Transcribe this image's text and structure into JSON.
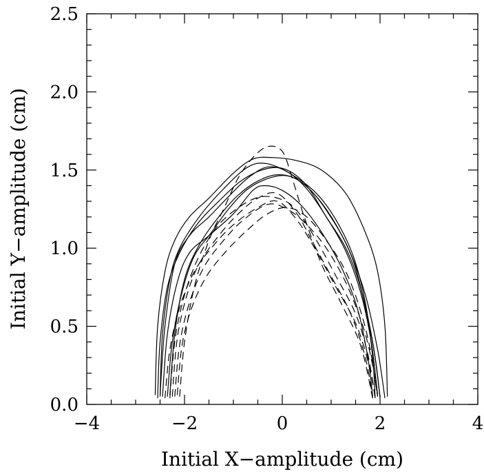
{
  "chart_data": {
    "type": "line",
    "title": "",
    "xlabel": "Initial X−amplitude (cm)",
    "ylabel": "Initial Y−amplitude (cm)",
    "xlim": [
      -4,
      4
    ],
    "ylim": [
      0,
      2.5
    ],
    "x_ticks": [
      -4,
      -2,
      0,
      2,
      4
    ],
    "x_tick_labels": [
      "−4",
      "−2",
      "0",
      "2",
      "4"
    ],
    "y_ticks": [
      0,
      0.5,
      1.0,
      1.5,
      2.0,
      2.5
    ],
    "y_tick_labels": [
      "0.0",
      "0.5",
      "1.0",
      "1.5",
      "2.0",
      "2.5"
    ],
    "grid": false,
    "legend": "none",
    "series": [
      {
        "style": "solid",
        "points": [
          [
            -2.6,
            0.06
          ],
          [
            -2.55,
            0.5
          ],
          [
            -2.4,
            0.85
          ],
          [
            -2.2,
            1.05
          ],
          [
            -1.9,
            1.2
          ],
          [
            -1.5,
            1.32
          ],
          [
            -1.0,
            1.48
          ],
          [
            -0.6,
            1.57
          ],
          [
            -0.2,
            1.58
          ],
          [
            0.3,
            1.56
          ],
          [
            0.8,
            1.5
          ],
          [
            1.3,
            1.35
          ],
          [
            1.7,
            1.1
          ],
          [
            1.95,
            0.85
          ],
          [
            2.1,
            0.5
          ],
          [
            2.15,
            0.05
          ]
        ]
      },
      {
        "style": "solid",
        "points": [
          [
            -2.5,
            0.05
          ],
          [
            -2.45,
            0.45
          ],
          [
            -2.3,
            0.8
          ],
          [
            -2.1,
            1.0
          ],
          [
            -1.7,
            1.2
          ],
          [
            -1.2,
            1.38
          ],
          [
            -0.7,
            1.52
          ],
          [
            -0.3,
            1.54
          ],
          [
            0.2,
            1.47
          ],
          [
            0.7,
            1.35
          ],
          [
            1.1,
            1.18
          ],
          [
            1.45,
            0.95
          ],
          [
            1.7,
            0.65
          ],
          [
            1.85,
            0.3
          ],
          [
            1.9,
            0.04
          ]
        ]
      },
      {
        "style": "solid",
        "points": [
          [
            -2.55,
            0.04
          ],
          [
            -2.5,
            0.4
          ],
          [
            -2.35,
            0.75
          ],
          [
            -2.1,
            0.97
          ],
          [
            -1.75,
            1.15
          ],
          [
            -1.3,
            1.3
          ],
          [
            -0.8,
            1.44
          ],
          [
            -0.3,
            1.51
          ],
          [
            0.1,
            1.5
          ],
          [
            0.5,
            1.4
          ],
          [
            0.9,
            1.2
          ],
          [
            1.3,
            1.0
          ],
          [
            1.6,
            0.75
          ],
          [
            1.85,
            0.4
          ],
          [
            2.0,
            0.05
          ]
        ]
      },
      {
        "style": "solid",
        "points": [
          [
            -2.45,
            0.05
          ],
          [
            -2.35,
            0.45
          ],
          [
            -2.15,
            0.78
          ],
          [
            -1.9,
            0.97
          ],
          [
            -1.5,
            1.08
          ],
          [
            -1.0,
            1.22
          ],
          [
            -0.6,
            1.37
          ],
          [
            -0.35,
            1.4
          ],
          [
            0.0,
            1.37
          ],
          [
            0.4,
            1.27
          ],
          [
            0.85,
            1.08
          ],
          [
            1.25,
            0.85
          ],
          [
            1.55,
            0.6
          ],
          [
            1.75,
            0.3
          ],
          [
            1.85,
            0.05
          ]
        ]
      },
      {
        "style": "solid",
        "points": [
          [
            -2.3,
            0.06
          ],
          [
            -2.2,
            0.45
          ],
          [
            -2.0,
            0.8
          ],
          [
            -1.7,
            1.02
          ],
          [
            -1.3,
            1.2
          ],
          [
            -0.9,
            1.34
          ],
          [
            -0.5,
            1.43
          ],
          [
            -0.1,
            1.47
          ],
          [
            0.3,
            1.44
          ],
          [
            0.7,
            1.33
          ],
          [
            1.1,
            1.15
          ],
          [
            1.45,
            0.92
          ],
          [
            1.7,
            0.62
          ],
          [
            1.9,
            0.3
          ],
          [
            2.0,
            0.04
          ]
        ]
      },
      {
        "style": "solid",
        "points": [
          [
            -2.5,
            0.06
          ],
          [
            -2.4,
            0.5
          ],
          [
            -2.2,
            0.9
          ],
          [
            -1.9,
            1.08
          ],
          [
            -1.5,
            1.2
          ],
          [
            -1.1,
            1.33
          ],
          [
            -0.7,
            1.45
          ],
          [
            -0.3,
            1.52
          ],
          [
            0.1,
            1.49
          ],
          [
            0.5,
            1.38
          ],
          [
            0.9,
            1.2
          ],
          [
            1.3,
            0.98
          ],
          [
            1.6,
            0.72
          ],
          [
            1.82,
            0.4
          ],
          [
            1.95,
            0.06
          ]
        ]
      },
      {
        "style": "solid",
        "points": [
          [
            -2.35,
            0.05
          ],
          [
            -2.25,
            0.4
          ],
          [
            -2.05,
            0.72
          ],
          [
            -1.8,
            0.95
          ],
          [
            -1.45,
            1.1
          ],
          [
            -1.1,
            1.25
          ],
          [
            -0.7,
            1.38
          ],
          [
            -0.25,
            1.45
          ],
          [
            0.15,
            1.46
          ],
          [
            0.55,
            1.38
          ],
          [
            0.95,
            1.22
          ],
          [
            1.35,
            1.0
          ],
          [
            1.7,
            0.7
          ],
          [
            1.95,
            0.35
          ],
          [
            2.1,
            0.04
          ]
        ]
      },
      {
        "style": "dashed",
        "points": [
          [
            -2.1,
            0.05
          ],
          [
            -2.0,
            0.4
          ],
          [
            -1.8,
            0.75
          ],
          [
            -1.5,
            1.05
          ],
          [
            -1.2,
            1.25
          ],
          [
            -0.9,
            1.45
          ],
          [
            -0.6,
            1.58
          ],
          [
            -0.3,
            1.65
          ],
          [
            0.0,
            1.62
          ],
          [
            0.2,
            1.45
          ],
          [
            0.45,
            1.2
          ],
          [
            0.8,
            0.9
          ],
          [
            1.2,
            0.65
          ],
          [
            1.6,
            0.38
          ],
          [
            1.85,
            0.04
          ]
        ]
      },
      {
        "style": "dashed",
        "points": [
          [
            -2.3,
            0.04
          ],
          [
            -2.2,
            0.4
          ],
          [
            -2.0,
            0.7
          ],
          [
            -1.7,
            0.95
          ],
          [
            -1.3,
            1.15
          ],
          [
            -0.8,
            1.28
          ],
          [
            -0.4,
            1.33
          ],
          [
            0.0,
            1.31
          ],
          [
            0.3,
            1.24
          ],
          [
            0.7,
            1.05
          ],
          [
            1.1,
            0.82
          ],
          [
            1.5,
            0.58
          ],
          [
            1.75,
            0.32
          ],
          [
            1.9,
            0.04
          ]
        ]
      },
      {
        "style": "dashed",
        "points": [
          [
            -2.2,
            0.05
          ],
          [
            -2.1,
            0.38
          ],
          [
            -1.9,
            0.65
          ],
          [
            -1.6,
            0.88
          ],
          [
            -1.2,
            1.05
          ],
          [
            -0.8,
            1.18
          ],
          [
            -0.3,
            1.28
          ],
          [
            0.1,
            1.25
          ],
          [
            0.5,
            1.15
          ],
          [
            0.9,
            1.0
          ],
          [
            1.3,
            0.78
          ],
          [
            1.65,
            0.5
          ],
          [
            1.85,
            0.25
          ],
          [
            1.95,
            0.05
          ]
        ]
      },
      {
        "style": "dashed",
        "points": [
          [
            -2.4,
            0.04
          ],
          [
            -2.3,
            0.35
          ],
          [
            -2.1,
            0.62
          ],
          [
            -1.8,
            0.85
          ],
          [
            -1.4,
            1.02
          ],
          [
            -1.0,
            1.15
          ],
          [
            -0.5,
            1.26
          ],
          [
            -0.1,
            1.3
          ],
          [
            0.3,
            1.18
          ],
          [
            0.7,
            0.98
          ],
          [
            1.1,
            0.75
          ],
          [
            1.5,
            0.52
          ],
          [
            1.75,
            0.28
          ],
          [
            1.9,
            0.05
          ]
        ]
      },
      {
        "style": "dashed",
        "points": [
          [
            -2.25,
            0.05
          ],
          [
            -2.15,
            0.42
          ],
          [
            -1.95,
            0.7
          ],
          [
            -1.7,
            0.9
          ],
          [
            -1.3,
            1.08
          ],
          [
            -0.9,
            1.22
          ],
          [
            -0.5,
            1.32
          ],
          [
            -0.1,
            1.35
          ],
          [
            0.3,
            1.22
          ],
          [
            0.6,
            1.05
          ],
          [
            1.0,
            0.82
          ],
          [
            1.4,
            0.58
          ],
          [
            1.7,
            0.3
          ],
          [
            1.85,
            0.04
          ]
        ]
      },
      {
        "style": "dashed",
        "points": [
          [
            -2.15,
            0.06
          ],
          [
            -2.05,
            0.38
          ],
          [
            -1.85,
            0.62
          ],
          [
            -1.55,
            0.82
          ],
          [
            -1.15,
            0.98
          ],
          [
            -0.7,
            1.12
          ],
          [
            -0.3,
            1.22
          ],
          [
            0.1,
            1.26
          ],
          [
            0.5,
            1.2
          ],
          [
            0.9,
            1.05
          ],
          [
            1.3,
            0.85
          ],
          [
            1.6,
            0.6
          ],
          [
            1.8,
            0.35
          ],
          [
            1.95,
            0.05
          ]
        ]
      }
    ]
  }
}
